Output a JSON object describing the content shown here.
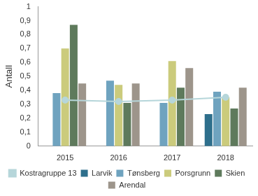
{
  "chart_data": {
    "type": "bar",
    "y_label": "Antall",
    "categories": [
      "2015",
      "2016",
      "2017",
      "2018"
    ],
    "series": [
      {
        "name": "Larvik",
        "color": "#2e6f8c",
        "values": [
          null,
          null,
          null,
          0.23
        ]
      },
      {
        "name": "Tønsberg",
        "color": "#6fa3bf",
        "values": [
          0.38,
          0.47,
          0.31,
          0.39
        ]
      },
      {
        "name": "Porsgrunn",
        "color": "#cbcb7c",
        "values": [
          0.7,
          0.44,
          0.61,
          0.35
        ]
      },
      {
        "name": "Skien",
        "color": "#5e7a5c",
        "values": [
          0.87,
          0.31,
          0.42,
          0.27
        ]
      },
      {
        "name": "Arendal",
        "color": "#9d958b",
        "values": [
          0.45,
          0.45,
          0.56,
          0.42
        ]
      },
      {
        "name": "Kostragruppe 13",
        "color": "#b6d6da",
        "type": "line",
        "marker": "circle",
        "values": [
          0.33,
          0.32,
          0.33,
          0.35
        ]
      }
    ],
    "ylim": [
      0,
      1
    ],
    "yticks": [
      0,
      {
        "value": 0.1,
        "label": "0,1"
      },
      {
        "value": 0.2,
        "label": "0,2"
      },
      {
        "value": 0.3,
        "label": "0,3"
      },
      {
        "value": 0.4,
        "label": "0,4"
      },
      {
        "value": 0.5,
        "label": "0,5"
      },
      {
        "value": 0.6,
        "label": "0,6"
      },
      {
        "value": 0.7,
        "label": "0,7"
      },
      {
        "value": 0.8,
        "label": "0,8"
      },
      {
        "value": 0.9,
        "label": "0,9"
      },
      1
    ],
    "grid": false,
    "legend": "bottom"
  }
}
